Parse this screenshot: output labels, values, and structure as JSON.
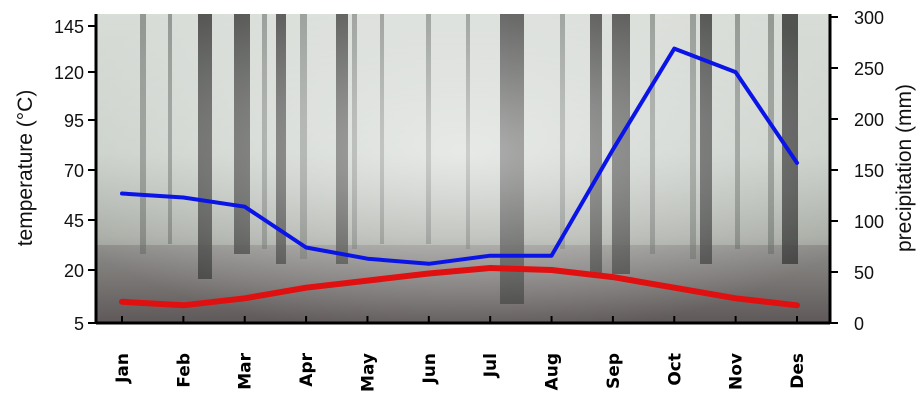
{
  "chart_data": {
    "type": "line",
    "categories": [
      "Jan",
      "Feb",
      "Mar",
      "Apr",
      "May",
      "Jun",
      "Jul",
      "Aug",
      "Sep",
      "Oct",
      "Nov",
      "Des"
    ],
    "ylabel_left": "temperature (°C)",
    "ylabel_right": "precipitation (mm)",
    "y_left_ticks": [
      "145",
      "120",
      "95",
      "70",
      "45",
      "20",
      "5"
    ],
    "y_right_ticks": [
      "300",
      "250",
      "200",
      "150",
      "100",
      "50",
      "0"
    ],
    "ylim_left": [
      5,
      145
    ],
    "ylim_right": [
      0,
      300
    ],
    "background": "misty forest photograph",
    "grid": false,
    "legend": "none",
    "series": [
      {
        "axis": "right",
        "color": "#0a14e6",
        "values": [
          127,
          123,
          114,
          74,
          63,
          58,
          66,
          66,
          170,
          269,
          246,
          157
        ]
      },
      {
        "axis": "left",
        "color": "#e01010",
        "values": [
          11,
          10,
          12,
          15,
          17,
          19,
          21,
          20,
          18,
          15,
          12,
          10
        ]
      }
    ]
  }
}
